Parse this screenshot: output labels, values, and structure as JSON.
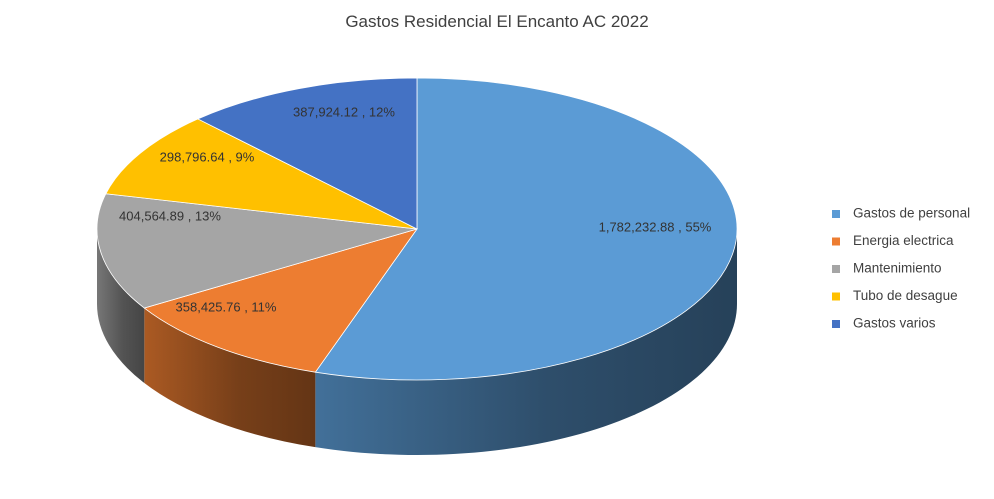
{
  "chart_data": {
    "type": "pie",
    "title": "Gastos Residencial El Encanto AC 2022",
    "legend_position": "right",
    "three_d": true,
    "slices": [
      {
        "name": "Gastos de personal",
        "value": 1782232.88,
        "percent": 55,
        "label": "1,782,232.88 , 55%",
        "color": "#5b9bd5"
      },
      {
        "name": "Energia electrica",
        "value": 358425.76,
        "percent": 11,
        "label": "358,425.76 , 11%",
        "color": "#ed7d31"
      },
      {
        "name": "Mantenimiento",
        "value": 404564.89,
        "percent": 13,
        "label": "404,564.89 , 13%",
        "color": "#a5a5a5"
      },
      {
        "name": "Tubo de desague",
        "value": 298796.64,
        "percent": 9,
        "label": "298,796.64 , 9%",
        "color": "#ffc000"
      },
      {
        "name": "Gastos varios",
        "value": 387924.12,
        "percent": 12,
        "label": "387,924.12 , 12%",
        "color": "#4472c4"
      }
    ]
  }
}
